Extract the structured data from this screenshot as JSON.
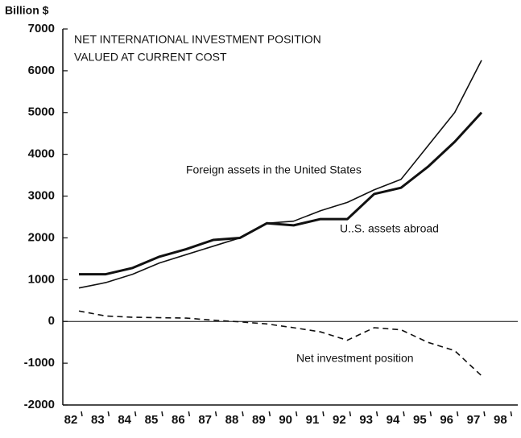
{
  "chart_data": {
    "type": "line",
    "title": "NET INTERNATIONAL INVESTMENT POSITION",
    "subtitle": "VALUED  AT CURRENT COST",
    "y_label": "Billion $",
    "x": [
      82,
      83,
      84,
      85,
      86,
      87,
      88,
      89,
      90,
      91,
      92,
      93,
      94,
      95,
      96,
      97
    ],
    "series": [
      {
        "name": "Foreign assets in the United States",
        "color": "#111111",
        "width": 1.6,
        "dash": false,
        "values": [
          800,
          930,
          1130,
          1400,
          1600,
          1800,
          2000,
          2350,
          2400,
          2650,
          2850,
          3150,
          3400,
          4200,
          5000,
          6250
        ]
      },
      {
        "name": "U..S.  assets abroad",
        "color": "#111111",
        "width": 3,
        "dash": false,
        "values": [
          1130,
          1130,
          1280,
          1550,
          1730,
          1950,
          2000,
          2350,
          2300,
          2450,
          2450,
          3050,
          3200,
          3700,
          4300,
          5000
        ]
      },
      {
        "name": "Net investment position",
        "color": "#111111",
        "width": 1.6,
        "dash": true,
        "values": [
          250,
          130,
          100,
          90,
          80,
          30,
          -10,
          -60,
          -150,
          -250,
          -450,
          -150,
          -200,
          -500,
          -700,
          -1300
        ]
      }
    ],
    "xlim": [
      81.4,
      98.35
    ],
    "xticks": [
      82,
      83,
      84,
      85,
      86,
      87,
      88,
      89,
      90,
      91,
      92,
      93,
      94,
      95,
      96,
      97,
      98
    ],
    "ylim": [
      -2000,
      7000
    ],
    "yticks": [
      -2000,
      -1000,
      0,
      1000,
      2000,
      3000,
      4000,
      5000,
      6000,
      7000
    ],
    "zero_line": true
  }
}
